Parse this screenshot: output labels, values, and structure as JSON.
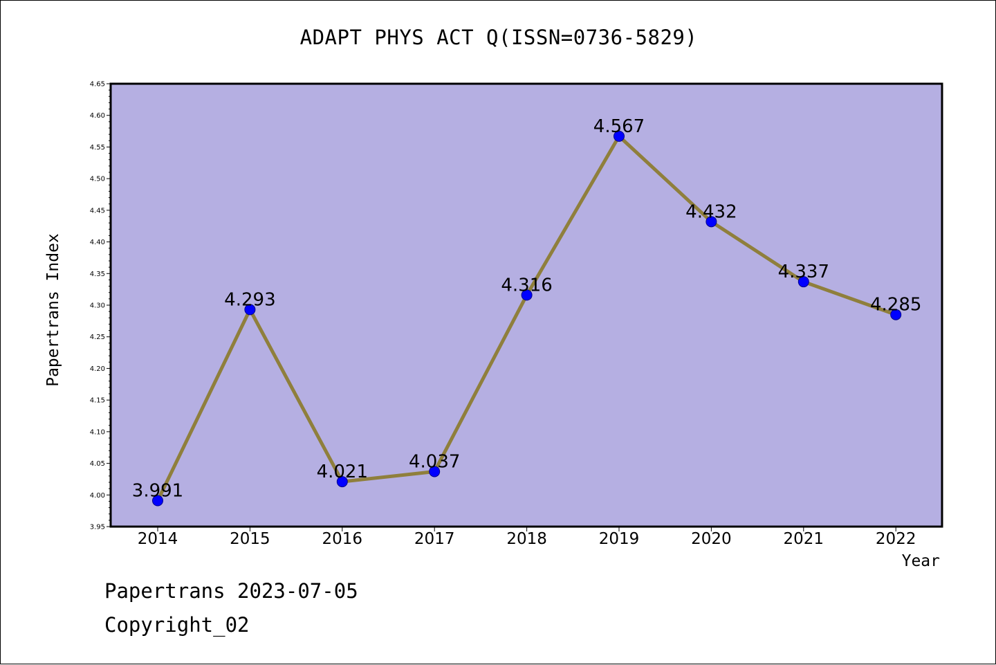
{
  "colors": {
    "plot_background": "#b5afe2",
    "line": "#8f7f3c",
    "marker": "#0000ff",
    "frame": "#000000"
  },
  "footer": {
    "date_line": "Papertrans 2023-07-05",
    "copyright": "Copyright_02"
  },
  "chart_data": {
    "type": "line",
    "title": "ADAPT PHYS ACT Q(ISSN=0736-5829)",
    "xlabel": "Year",
    "ylabel": "Papertrans Index",
    "categories": [
      "2014",
      "2015",
      "2016",
      "2017",
      "2018",
      "2019",
      "2020",
      "2021",
      "2022"
    ],
    "series": [
      {
        "values": [
          3.991,
          4.293,
          4.021,
          4.037,
          4.316,
          4.567,
          4.432,
          4.337,
          4.285
        ],
        "data_labels": [
          "3.991",
          "4.293",
          "4.021",
          "4.037",
          "4.316",
          "4.567",
          "4.432",
          "4.337",
          "4.285"
        ]
      }
    ],
    "ylim": [
      3.95,
      4.65
    ],
    "yticks": [
      "3.95",
      "4.00",
      "4.05",
      "4.10",
      "4.15",
      "4.20",
      "4.25",
      "4.30",
      "4.35",
      "4.40",
      "4.45",
      "4.50",
      "4.55",
      "4.60",
      "4.65"
    ],
    "grid": false,
    "legend": "none"
  }
}
